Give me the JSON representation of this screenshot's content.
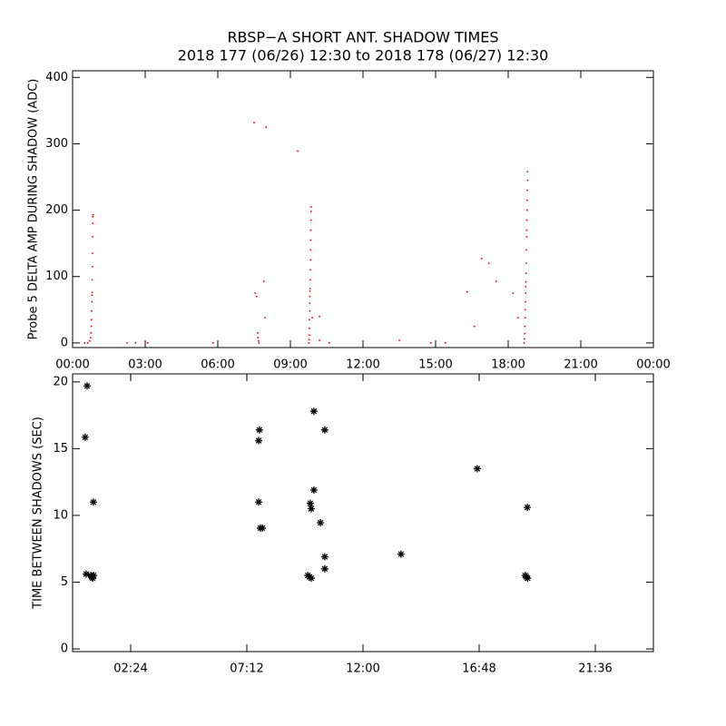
{
  "chart_data": [
    {
      "type": "scatter",
      "title": "RBSP−A SHORT ANT. SHADOW TIMES",
      "subtitle": "2018 177 (06/26) 12:30 to 2018 178 (06/27) 12:30",
      "y_label": "Probe 5 DELTA AMP DURING SHADOW (ADC)",
      "marker": "dot",
      "color": "#ff0000",
      "x": [
        0.5,
        0.62,
        0.7,
        0.75,
        0.76,
        0.77,
        0.78,
        0.79,
        0.8,
        0.8,
        0.81,
        0.81,
        0.82,
        0.82,
        0.82,
        0.83,
        0.83,
        0.84,
        2.25,
        2.6,
        3.1,
        5.8,
        7.5,
        8.0,
        9.3,
        7.55,
        7.6,
        7.65,
        7.66,
        7.68,
        7.7,
        7.9,
        7.95,
        9.76,
        9.77,
        9.78,
        9.78,
        9.79,
        9.8,
        9.8,
        9.8,
        9.81,
        9.81,
        9.82,
        9.82,
        9.83,
        9.83,
        9.84,
        9.84,
        9.85,
        9.85,
        9.86,
        9.9,
        10.2,
        10.2,
        10.6,
        13.5,
        14.8,
        15.4,
        16.3,
        16.6,
        16.9,
        17.2,
        17.5,
        18.2,
        18.4,
        18.66,
        18.67,
        18.68,
        18.69,
        18.7,
        18.7,
        18.71,
        18.72,
        18.72,
        18.73,
        18.74,
        18.74,
        18.75,
        18.76,
        18.76,
        18.77,
        18.78,
        18.78,
        18.79,
        18.8,
        18.8
      ],
      "values": [
        0,
        0,
        3,
        8,
        15,
        25,
        35,
        48,
        62,
        72,
        76,
        95,
        115,
        135,
        160,
        180,
        190,
        193,
        0,
        0,
        0,
        0,
        332,
        325,
        289,
        75,
        70,
        15,
        8,
        3,
        0,
        93,
        38,
        0,
        5,
        12,
        22,
        35,
        48,
        60,
        70,
        78,
        82,
        95,
        110,
        125,
        140,
        155,
        170,
        185,
        198,
        205,
        38,
        40,
        4,
        0,
        4,
        0,
        0,
        77,
        25,
        127,
        120,
        93,
        75,
        38,
        0,
        6,
        14,
        25,
        38,
        50,
        62,
        75,
        85,
        92,
        105,
        120,
        140,
        160,
        170,
        185,
        200,
        215,
        230,
        245,
        258
      ],
      "xlim": [
        0,
        24
      ],
      "xticks": [
        {
          "value": 0,
          "label": "00:00"
        },
        {
          "value": 3,
          "label": "03:00"
        },
        {
          "value": 6,
          "label": "06:00"
        },
        {
          "value": 9,
          "label": "09:00"
        },
        {
          "value": 12,
          "label": "12:00"
        },
        {
          "value": 15,
          "label": "15:00"
        },
        {
          "value": 18,
          "label": "18:00"
        },
        {
          "value": 21,
          "label": "21:00"
        },
        {
          "value": 24,
          "label": "00:00"
        }
      ],
      "ylim": [
        -7,
        410
      ],
      "yticks": [
        0,
        100,
        200,
        300,
        400
      ]
    },
    {
      "type": "scatter",
      "y_label": "TIME BETWEEN SHADOWS (SEC)",
      "marker": "asterisk",
      "color": "#000000",
      "x": [
        0.6,
        0.52,
        0.86,
        0.56,
        0.75,
        0.79,
        0.83,
        0.87,
        7.72,
        7.69,
        7.69,
        7.76,
        7.84,
        9.72,
        9.79,
        9.86,
        9.82,
        9.86,
        9.97,
        9.97,
        10.24,
        10.42,
        10.42,
        10.42,
        13.57,
        16.72,
        18.79,
        18.7,
        18.75,
        18.8
      ],
      "values": [
        19.7,
        15.85,
        11.0,
        5.6,
        5.5,
        5.4,
        5.3,
        5.5,
        16.4,
        15.6,
        11.0,
        9.05,
        9.05,
        5.5,
        5.4,
        5.3,
        10.9,
        10.5,
        17.8,
        11.9,
        9.45,
        16.4,
        6.9,
        6.0,
        7.1,
        13.5,
        10.6,
        5.5,
        5.4,
        5.3
      ],
      "xlim": [
        0,
        24
      ],
      "xticks": [
        {
          "value": 2.4,
          "label": "02:24"
        },
        {
          "value": 7.2,
          "label": "07:12"
        },
        {
          "value": 12,
          "label": "12:00"
        },
        {
          "value": 16.8,
          "label": "16:48"
        },
        {
          "value": 21.6,
          "label": "21:36"
        }
      ],
      "ylim": [
        -0.2,
        20.6
      ],
      "yticks": [
        0,
        5,
        10,
        15,
        20
      ]
    }
  ]
}
